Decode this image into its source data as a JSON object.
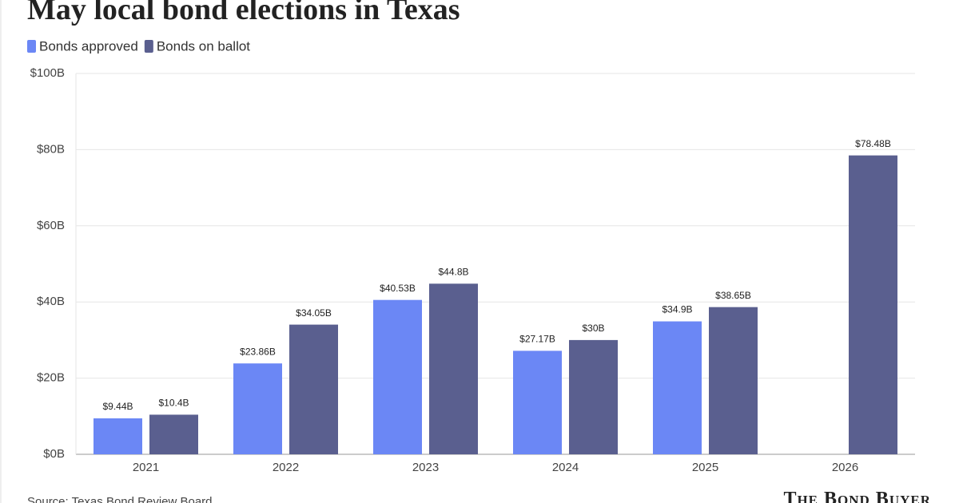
{
  "chart_data": {
    "type": "bar",
    "title": "May local bond elections in Texas",
    "categories": [
      "2021",
      "2022",
      "2023",
      "2024",
      "2025",
      "2026"
    ],
    "series": [
      {
        "name": "Bonds approved",
        "color": "#6b87f5",
        "values": [
          9.44,
          23.86,
          40.53,
          27.17,
          34.9,
          null
        ],
        "value_labels": [
          "$9.44B",
          "$23.86B",
          "$40.53B",
          "$27.17B",
          "$34.9B",
          null
        ]
      },
      {
        "name": "Bonds on ballot",
        "color": "#5a5f8f",
        "values": [
          10.4,
          34.05,
          44.8,
          30,
          38.65,
          78.48
        ],
        "value_labels": [
          "$10.4B",
          "$34.05B",
          "$44.8B",
          "$30B",
          "$38.65B",
          "$78.48B"
        ]
      }
    ],
    "ylim": [
      0,
      100
    ],
    "yticks": [
      {
        "value": 0,
        "label": "$0B"
      },
      {
        "value": 20,
        "label": "$20B"
      },
      {
        "value": 40,
        "label": "$40B"
      },
      {
        "value": 60,
        "label": "$60B"
      },
      {
        "value": 80,
        "label": "$80B"
      },
      {
        "value": 100,
        "label": "$100B"
      }
    ],
    "grid": true,
    "source": "Source: Texas Bond Review Board",
    "brand": "The Bond Buyer"
  }
}
